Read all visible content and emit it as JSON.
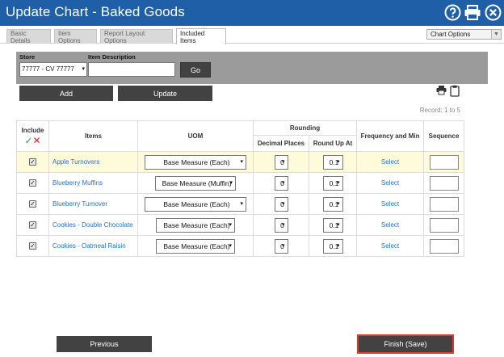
{
  "window": {
    "title": "Update Chart - Baked Goods"
  },
  "title_icons": [
    "help-icon",
    "print-icon",
    "close-icon"
  ],
  "tabs": [
    {
      "label": "Basic Details",
      "active": false
    },
    {
      "label": "Item Options",
      "active": false
    },
    {
      "label": "Report Layout Options",
      "active": false
    },
    {
      "label": "Included Items",
      "active": true
    }
  ],
  "chart_options": {
    "selected": "Chart Options"
  },
  "filter": {
    "store_label": "Store",
    "store_value": "77777 - CV 77777",
    "item_desc_label": "Item Description",
    "item_desc_value": "",
    "go_label": "Go"
  },
  "actions": {
    "add_label": "Add",
    "update_label": "Update"
  },
  "record_text": "Record: 1 to 5",
  "table": {
    "headers": {
      "include": "Include",
      "items": "Items",
      "uom": "UOM",
      "rounding": "Rounding",
      "decimal_places": "Decimal Places",
      "round_up_at": "Round Up At",
      "frequency": "Frequency and Min",
      "sequence": "Sequence"
    },
    "rows": [
      {
        "checked": true,
        "item": "Apple Turnovers",
        "uom": "Base Measure (Each)",
        "decimal": "0",
        "round_up": "0.1",
        "frequency": "Select",
        "sequence": ""
      },
      {
        "checked": true,
        "item": "Blueberry Muffins",
        "uom": "Base Measure (Muffin)",
        "decimal": "0",
        "round_up": "0.1",
        "frequency": "Select",
        "sequence": ""
      },
      {
        "checked": true,
        "item": "Blueberry Turnover",
        "uom": "Base Measure (Each)",
        "decimal": "0",
        "round_up": "0.1",
        "frequency": "Select",
        "sequence": ""
      },
      {
        "checked": true,
        "item": "Cookies - Double Chocolate",
        "uom": "Base Measure (Each)",
        "decimal": "0",
        "round_up": "0.1",
        "frequency": "Select",
        "sequence": ""
      },
      {
        "checked": true,
        "item": "Cookies - Oatmeal Raisin",
        "uom": "Base Measure (Each)",
        "decimal": "0",
        "round_up": "0.1",
        "frequency": "Select",
        "sequence": ""
      }
    ]
  },
  "footer": {
    "previous_label": "Previous",
    "finish_label": "Finish (Save)"
  },
  "colors": {
    "titlebar": "#1f5fa8",
    "dark_button": "#424242",
    "link": "#2a72c8",
    "highlight_row": "#fdfbd9",
    "finish_border": "#e0392b"
  }
}
